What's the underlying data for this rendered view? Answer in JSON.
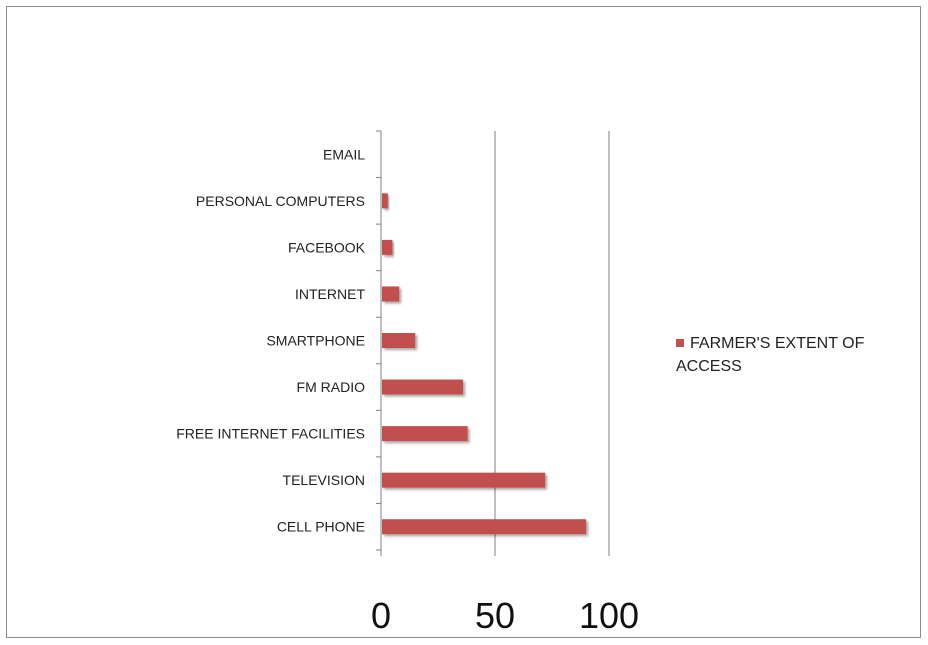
{
  "chart_data": {
    "type": "bar",
    "orientation": "horizontal",
    "categories": [
      "CELL PHONE",
      "TELEVISION",
      "FREE INTERNET FACILITIES",
      "FM RADIO",
      "SMARTPHONE",
      "INTERNET",
      "FACEBOOK",
      "PERSONAL COMPUTERS",
      "EMAIL"
    ],
    "series": [
      {
        "name": "FARMER'S EXTENT OF ACCESS",
        "values": [
          90,
          72,
          38,
          36,
          15,
          8,
          5,
          3,
          0
        ]
      }
    ],
    "xlim": [
      0,
      100
    ],
    "xticks": [
      0,
      50,
      100
    ],
    "grid": "vertical major gridlines",
    "legend_position": "right",
    "colors": {
      "bar": "#c0504d",
      "axis": "#808080",
      "grid": "#808080"
    }
  }
}
